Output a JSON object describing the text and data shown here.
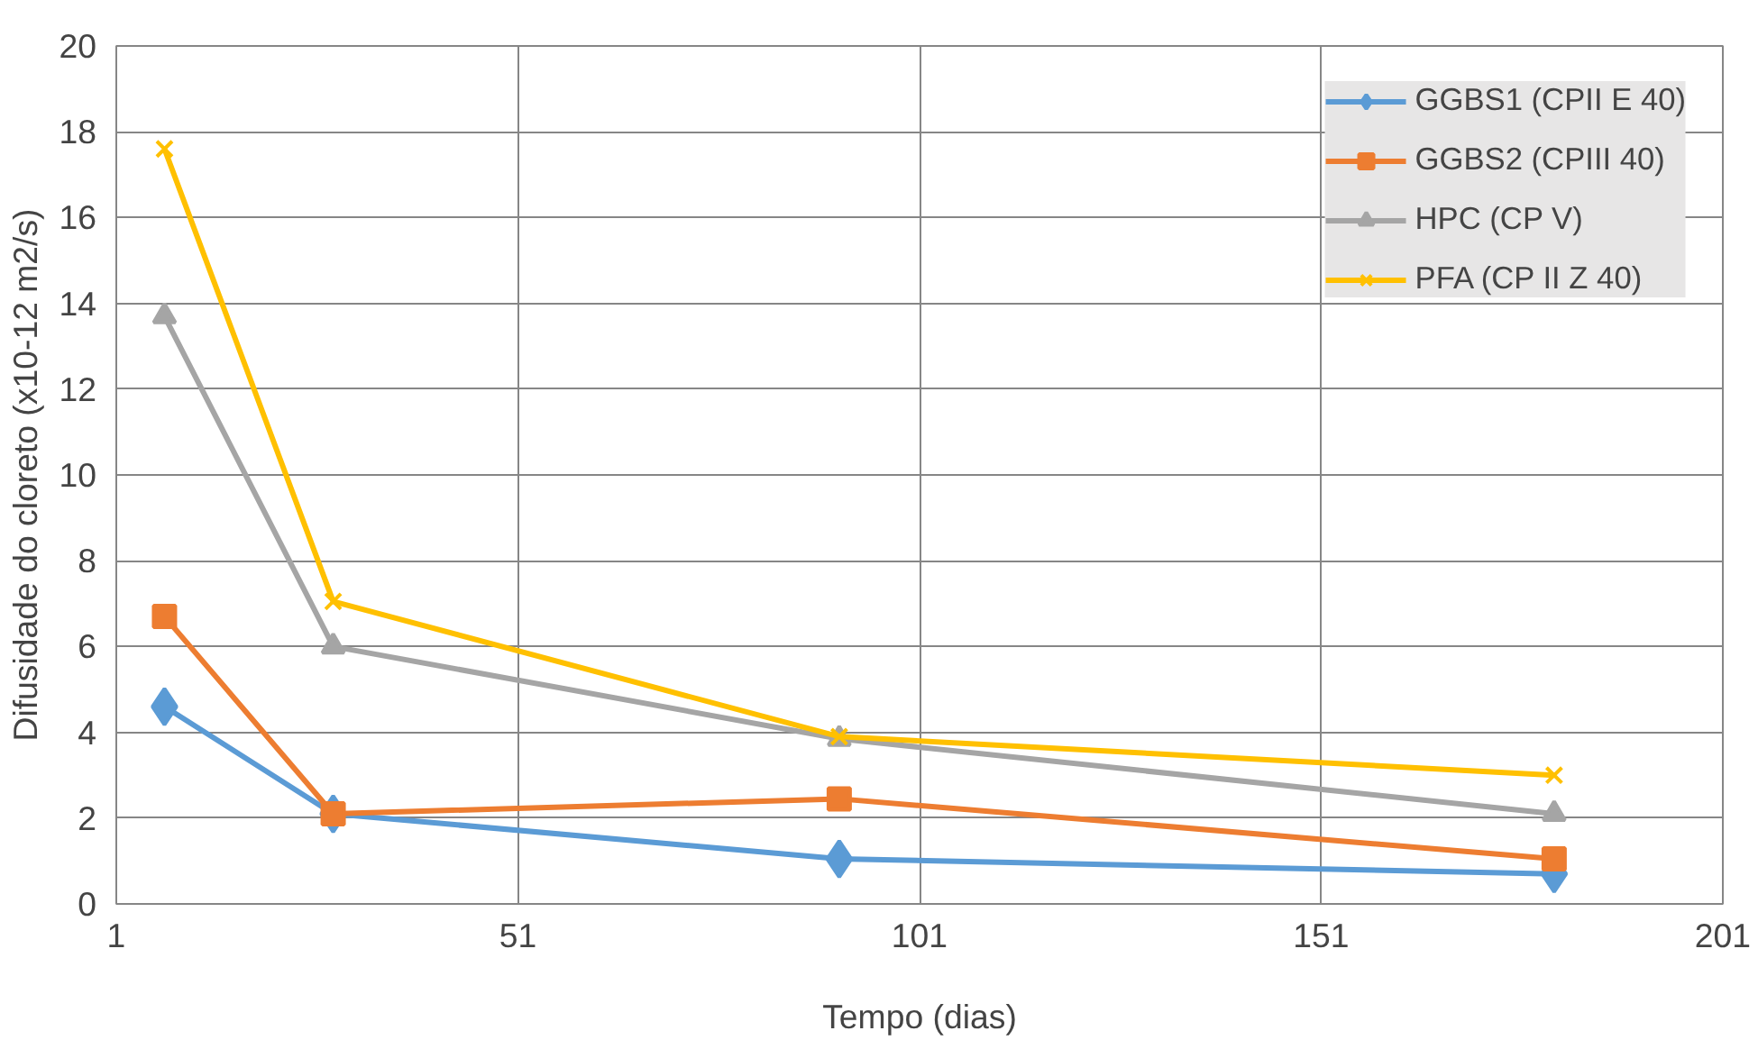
{
  "chart_data": {
    "type": "line",
    "xlabel": "Tempo (dias)",
    "ylabel": "Difusidade do cloreto (x10-12 m2/s)",
    "x": [
      7,
      28,
      91,
      180
    ],
    "series": [
      {
        "name": "GGBS1 (CPII E 40)",
        "color": "#5b9bd5",
        "marker": "diamond",
        "values": [
          4.6,
          2.1,
          1.05,
          0.7
        ]
      },
      {
        "name": "GGBS2 (CPIII 40)",
        "color": "#ed7d31",
        "marker": "square",
        "values": [
          6.7,
          2.1,
          2.45,
          1.05
        ]
      },
      {
        "name": "HPC (CP V)",
        "color": "#a5a5a5",
        "marker": "triangle",
        "values": [
          13.7,
          6.0,
          3.85,
          2.1
        ]
      },
      {
        "name": "PFA (CP II Z 40)",
        "color": "#ffc000",
        "marker": "cross",
        "values": [
          17.6,
          7.05,
          3.9,
          3.0
        ]
      }
    ],
    "xlim": [
      1,
      201
    ],
    "xticks": [
      1,
      51,
      101,
      151,
      201
    ],
    "ylim": [
      0,
      20
    ],
    "yticks": [
      0,
      2,
      4,
      6,
      8,
      10,
      12,
      14,
      16,
      18,
      20
    ],
    "grid": true,
    "legend": "top right",
    "line_style": "solid"
  }
}
